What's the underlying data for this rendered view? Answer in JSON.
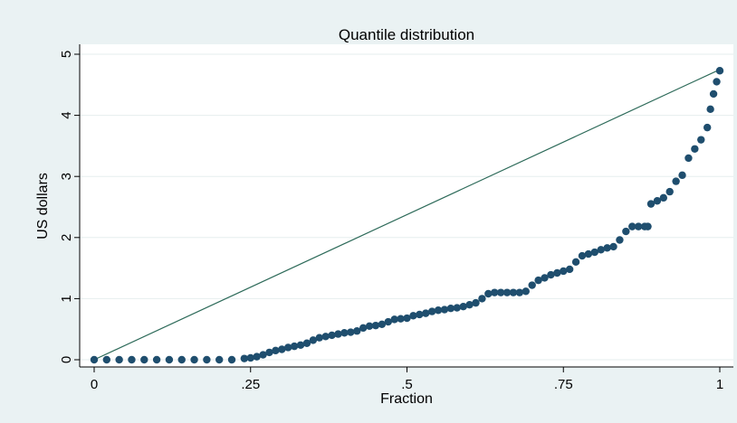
{
  "chart_data": {
    "type": "scatter",
    "title": "Quantile distribution",
    "xlabel": "Fraction",
    "ylabel": "US dollars",
    "xlim": [
      0,
      1
    ],
    "ylim": [
      0,
      5
    ],
    "x_ticks": [
      {
        "value": 0,
        "label": "0"
      },
      {
        "value": 0.25,
        "label": ".25"
      },
      {
        "value": 0.5,
        "label": ".5"
      },
      {
        "value": 0.75,
        "label": ".75"
      },
      {
        "value": 1,
        "label": "1"
      }
    ],
    "y_ticks": [
      {
        "value": 0,
        "label": "0"
      },
      {
        "value": 1,
        "label": "1"
      },
      {
        "value": 2,
        "label": "2"
      },
      {
        "value": 3,
        "label": "3"
      },
      {
        "value": 4,
        "label": "4"
      },
      {
        "value": 5,
        "label": "5"
      }
    ],
    "grid": true,
    "reference_line": {
      "x": [
        0,
        1
      ],
      "y": [
        0,
        4.75
      ],
      "color": "#2e6b5a"
    },
    "series": [
      {
        "marker_color": "#1f4e6e",
        "points": [
          [
            0.0,
            0.0
          ],
          [
            0.02,
            0.0
          ],
          [
            0.04,
            0.0
          ],
          [
            0.06,
            0.0
          ],
          [
            0.08,
            0.0
          ],
          [
            0.1,
            0.0
          ],
          [
            0.12,
            0.0
          ],
          [
            0.14,
            0.0
          ],
          [
            0.16,
            0.0
          ],
          [
            0.18,
            0.0
          ],
          [
            0.2,
            0.0
          ],
          [
            0.22,
            0.0
          ],
          [
            0.24,
            0.02
          ],
          [
            0.25,
            0.03
          ],
          [
            0.26,
            0.05
          ],
          [
            0.27,
            0.08
          ],
          [
            0.28,
            0.12
          ],
          [
            0.29,
            0.15
          ],
          [
            0.3,
            0.17
          ],
          [
            0.31,
            0.2
          ],
          [
            0.32,
            0.22
          ],
          [
            0.33,
            0.24
          ],
          [
            0.34,
            0.27
          ],
          [
            0.35,
            0.32
          ],
          [
            0.36,
            0.36
          ],
          [
            0.37,
            0.38
          ],
          [
            0.38,
            0.4
          ],
          [
            0.39,
            0.42
          ],
          [
            0.4,
            0.44
          ],
          [
            0.41,
            0.45
          ],
          [
            0.42,
            0.47
          ],
          [
            0.43,
            0.52
          ],
          [
            0.44,
            0.55
          ],
          [
            0.45,
            0.56
          ],
          [
            0.46,
            0.58
          ],
          [
            0.47,
            0.62
          ],
          [
            0.48,
            0.66
          ],
          [
            0.49,
            0.67
          ],
          [
            0.5,
            0.68
          ],
          [
            0.51,
            0.72
          ],
          [
            0.52,
            0.74
          ],
          [
            0.53,
            0.76
          ],
          [
            0.54,
            0.79
          ],
          [
            0.55,
            0.81
          ],
          [
            0.56,
            0.82
          ],
          [
            0.57,
            0.84
          ],
          [
            0.58,
            0.85
          ],
          [
            0.59,
            0.87
          ],
          [
            0.6,
            0.9
          ],
          [
            0.61,
            0.93
          ],
          [
            0.62,
            1.0
          ],
          [
            0.63,
            1.08
          ],
          [
            0.64,
            1.1
          ],
          [
            0.65,
            1.1
          ],
          [
            0.66,
            1.1
          ],
          [
            0.67,
            1.1
          ],
          [
            0.68,
            1.1
          ],
          [
            0.69,
            1.12
          ],
          [
            0.7,
            1.22
          ],
          [
            0.71,
            1.3
          ],
          [
            0.72,
            1.34
          ],
          [
            0.73,
            1.39
          ],
          [
            0.74,
            1.42
          ],
          [
            0.75,
            1.45
          ],
          [
            0.76,
            1.48
          ],
          [
            0.77,
            1.6
          ],
          [
            0.78,
            1.7
          ],
          [
            0.79,
            1.73
          ],
          [
            0.8,
            1.76
          ],
          [
            0.81,
            1.8
          ],
          [
            0.82,
            1.83
          ],
          [
            0.83,
            1.85
          ],
          [
            0.84,
            1.96
          ],
          [
            0.85,
            2.1
          ],
          [
            0.86,
            2.18
          ],
          [
            0.87,
            2.18
          ],
          [
            0.88,
            2.18
          ],
          [
            0.885,
            2.18
          ],
          [
            0.89,
            2.55
          ],
          [
            0.9,
            2.6
          ],
          [
            0.91,
            2.65
          ],
          [
            0.92,
            2.75
          ],
          [
            0.93,
            2.92
          ],
          [
            0.94,
            3.02
          ],
          [
            0.95,
            3.3
          ],
          [
            0.96,
            3.45
          ],
          [
            0.97,
            3.6
          ],
          [
            0.98,
            3.8
          ],
          [
            0.985,
            4.1
          ],
          [
            0.99,
            4.35
          ],
          [
            0.995,
            4.55
          ],
          [
            1.0,
            4.73
          ]
        ]
      }
    ]
  }
}
